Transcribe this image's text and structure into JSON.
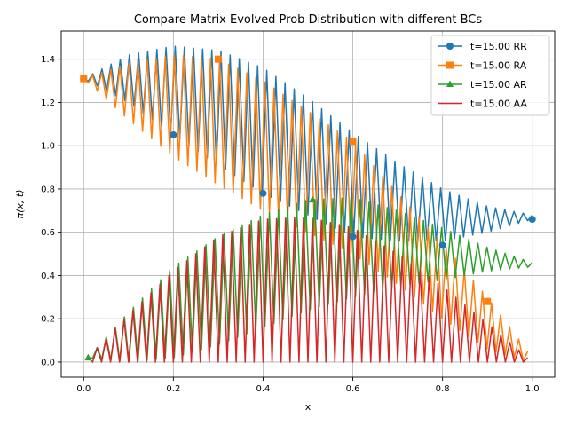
{
  "chart_data": {
    "type": "line",
    "title": "Compare Matrix Evolved Prob Distribution with different BCs",
    "xlabel": "x",
    "ylabel": "π(x, t)",
    "xlim": [
      -0.05,
      1.05
    ],
    "ylim": [
      -0.07,
      1.53
    ],
    "xticks": [
      0.0,
      0.2,
      0.4,
      0.6,
      0.8,
      1.0
    ],
    "xtick_labels": [
      "0.0",
      "0.2",
      "0.4",
      "0.6",
      "0.8",
      "1.0"
    ],
    "yticks": [
      0.0,
      0.2,
      0.4,
      0.6,
      0.8,
      1.0,
      1.2,
      1.4
    ],
    "ytick_labels": [
      "0.0",
      "0.2",
      "0.4",
      "0.6",
      "0.8",
      "1.0",
      "1.2",
      "1.4"
    ],
    "grid": true,
    "legend_position": "top-right",
    "oscillation_periods": 49,
    "series": [
      {
        "name": "t=15.00 RR",
        "color": "#1f77b4",
        "marker": "circle",
        "x_range": [
          0.0,
          1.0
        ],
        "envelope_upper": [
          [
            0.0,
            1.31
          ],
          [
            0.1,
            1.42
          ],
          [
            0.2,
            1.46
          ],
          [
            0.3,
            1.44
          ],
          [
            0.4,
            1.36
          ],
          [
            0.5,
            1.22
          ],
          [
            0.6,
            1.06
          ],
          [
            0.7,
            0.92
          ],
          [
            0.8,
            0.8
          ],
          [
            0.9,
            0.72
          ],
          [
            1.0,
            0.68
          ]
        ],
        "envelope_lower": [
          [
            0.0,
            1.31
          ],
          [
            0.1,
            1.2
          ],
          [
            0.2,
            1.05
          ],
          [
            0.3,
            0.91
          ],
          [
            0.4,
            0.78
          ],
          [
            0.5,
            0.68
          ],
          [
            0.6,
            0.58
          ],
          [
            0.7,
            0.56
          ],
          [
            0.8,
            0.56
          ],
          [
            0.9,
            0.6
          ],
          [
            1.0,
            0.66
          ]
        ],
        "marker_points": [
          [
            0.0,
            1.31
          ],
          [
            0.2,
            1.05
          ],
          [
            0.4,
            0.78
          ],
          [
            0.6,
            0.58
          ],
          [
            0.8,
            0.54
          ],
          [
            1.0,
            0.66
          ]
        ]
      },
      {
        "name": "t=15.00 RA",
        "color": "#ff7f0e",
        "marker": "square",
        "x_range": [
          0.0,
          0.99
        ],
        "envelope_upper": [
          [
            0.0,
            1.31
          ],
          [
            0.1,
            1.38
          ],
          [
            0.2,
            1.42
          ],
          [
            0.3,
            1.4
          ],
          [
            0.4,
            1.3
          ],
          [
            0.5,
            1.16
          ],
          [
            0.6,
            1.02
          ],
          [
            0.7,
            0.78
          ],
          [
            0.8,
            0.55
          ],
          [
            0.9,
            0.3
          ],
          [
            0.99,
            0.05
          ]
        ],
        "envelope_lower": [
          [
            0.0,
            1.31
          ],
          [
            0.1,
            1.12
          ],
          [
            0.2,
            0.95
          ],
          [
            0.3,
            0.82
          ],
          [
            0.4,
            0.7
          ],
          [
            0.5,
            0.6
          ],
          [
            0.6,
            0.5
          ],
          [
            0.7,
            0.36
          ],
          [
            0.8,
            0.2
          ],
          [
            0.9,
            0.06
          ],
          [
            0.99,
            0.0
          ]
        ],
        "marker_points": [
          [
            0.0,
            1.31
          ],
          [
            0.3,
            1.4
          ],
          [
            0.6,
            1.02
          ],
          [
            0.9,
            0.28
          ]
        ]
      },
      {
        "name": "t=15.00 AR",
        "color": "#2ca02c",
        "marker": "triangle",
        "x_range": [
          0.01,
          1.0
        ],
        "envelope_upper": [
          [
            0.01,
            0.02
          ],
          [
            0.1,
            0.23
          ],
          [
            0.2,
            0.44
          ],
          [
            0.3,
            0.58
          ],
          [
            0.4,
            0.68
          ],
          [
            0.5,
            0.75
          ],
          [
            0.6,
            0.76
          ],
          [
            0.7,
            0.7
          ],
          [
            0.8,
            0.62
          ],
          [
            0.9,
            0.53
          ],
          [
            1.0,
            0.46
          ]
        ],
        "envelope_lower": [
          [
            0.01,
            0.02
          ],
          [
            0.1,
            0.0
          ],
          [
            0.2,
            0.02
          ],
          [
            0.3,
            0.08
          ],
          [
            0.4,
            0.16
          ],
          [
            0.5,
            0.24
          ],
          [
            0.6,
            0.3
          ],
          [
            0.7,
            0.35
          ],
          [
            0.8,
            0.38
          ],
          [
            0.9,
            0.42
          ],
          [
            1.0,
            0.44
          ]
        ],
        "marker_points": [
          [
            0.01,
            0.02
          ],
          [
            0.51,
            0.75
          ]
        ]
      },
      {
        "name": "t=15.00 AA",
        "color": "#d62728",
        "marker": "none",
        "x_range": [
          0.01,
          0.99
        ],
        "envelope_upper": [
          [
            0.01,
            0.02
          ],
          [
            0.1,
            0.22
          ],
          [
            0.2,
            0.42
          ],
          [
            0.3,
            0.58
          ],
          [
            0.4,
            0.66
          ],
          [
            0.5,
            0.67
          ],
          [
            0.6,
            0.62
          ],
          [
            0.7,
            0.5
          ],
          [
            0.8,
            0.35
          ],
          [
            0.9,
            0.18
          ],
          [
            0.99,
            0.02
          ]
        ],
        "envelope_lower": [
          [
            0.01,
            0.0
          ],
          [
            0.5,
            0.0
          ],
          [
            0.99,
            0.0
          ]
        ],
        "marker_points": []
      }
    ]
  }
}
